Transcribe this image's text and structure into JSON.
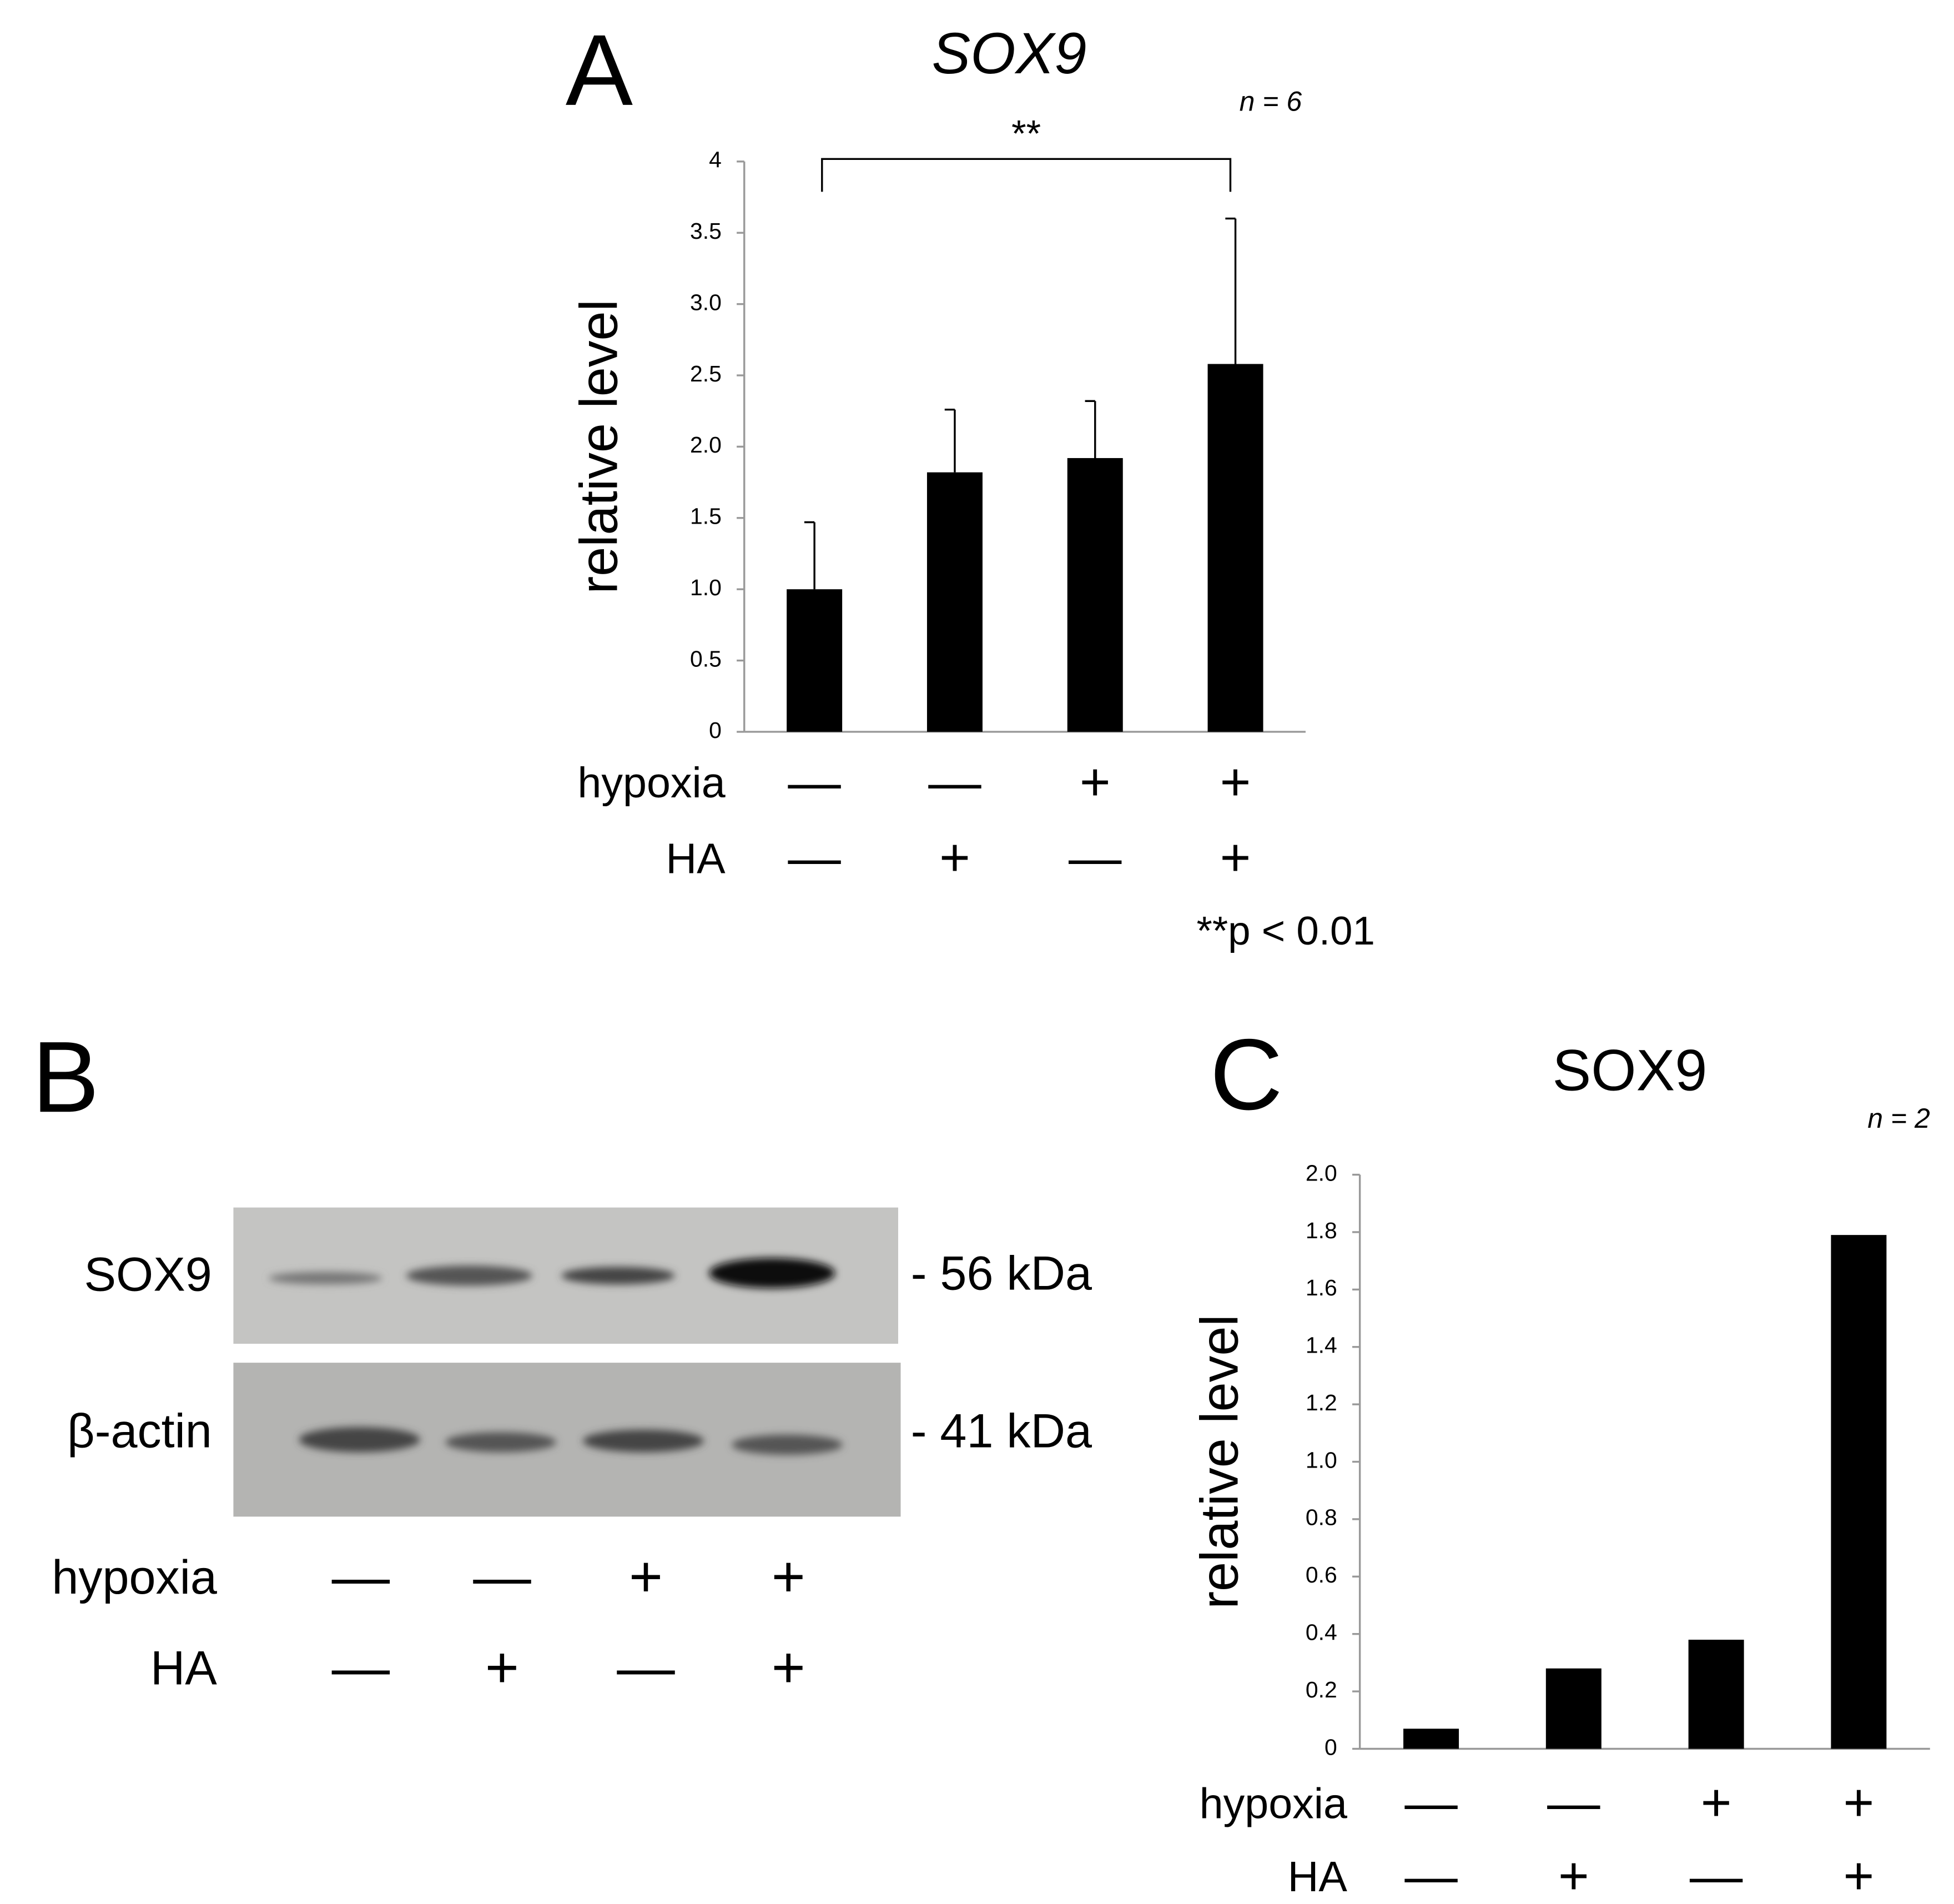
{
  "chart_data": [
    {
      "type": "bar",
      "panel_label": "A",
      "title": "SOX9",
      "n_label": "n = 6",
      "y_label": "relative level",
      "values": [
        1.0,
        1.82,
        1.92,
        2.58
      ],
      "errors": [
        0.47,
        0.44,
        0.4,
        1.02
      ],
      "color": "#000000",
      "ylim": [
        0,
        4
      ],
      "yticks": [
        0,
        0.5,
        {
          "value": 1,
          "label": "1.0"
        },
        1.5,
        {
          "value": 2,
          "label": "2.0"
        },
        2.5,
        {
          "value": 3,
          "label": "3.0"
        },
        3.5,
        4
      ],
      "conditions": [
        {
          "name": "hypoxia",
          "values": [
            "—",
            "—",
            "+",
            "+"
          ]
        },
        {
          "name": "HA",
          "values": [
            "—",
            "+",
            "—",
            "+"
          ]
        }
      ],
      "significance_label": "**",
      "note": "**p < 0.01"
    },
    {
      "type": "bar",
      "panel_label": "C",
      "title": "SOX9",
      "n_label": "n = 2",
      "y_label": "relative level",
      "values": [
        0.07,
        0.28,
        0.38,
        1.79
      ],
      "color": "#000000",
      "ylim": [
        0,
        2
      ],
      "yticks": [
        0,
        0.2,
        0.4,
        0.6,
        0.8,
        {
          "value": 1,
          "label": "1.0"
        },
        1.2,
        1.4,
        1.6,
        1.8,
        {
          "value": 2,
          "label": "2.0"
        }
      ],
      "conditions": [
        {
          "name": "hypoxia",
          "values": [
            "—",
            "—",
            "+",
            "+"
          ]
        },
        {
          "name": "HA",
          "values": [
            "—",
            "+",
            "—",
            "+"
          ]
        }
      ]
    }
  ],
  "blot": {
    "panel_label": "B",
    "rows": [
      {
        "name": "SOX9",
        "size": "- 56 kDa"
      },
      {
        "name": "β-actin",
        "size": "- 41 kDa"
      }
    ],
    "conditions": [
      {
        "name": "hypoxia",
        "values": [
          "—",
          "—",
          "+",
          "+"
        ]
      },
      {
        "name": "HA",
        "values": [
          "—",
          "+",
          "—",
          "+"
        ]
      }
    ]
  }
}
